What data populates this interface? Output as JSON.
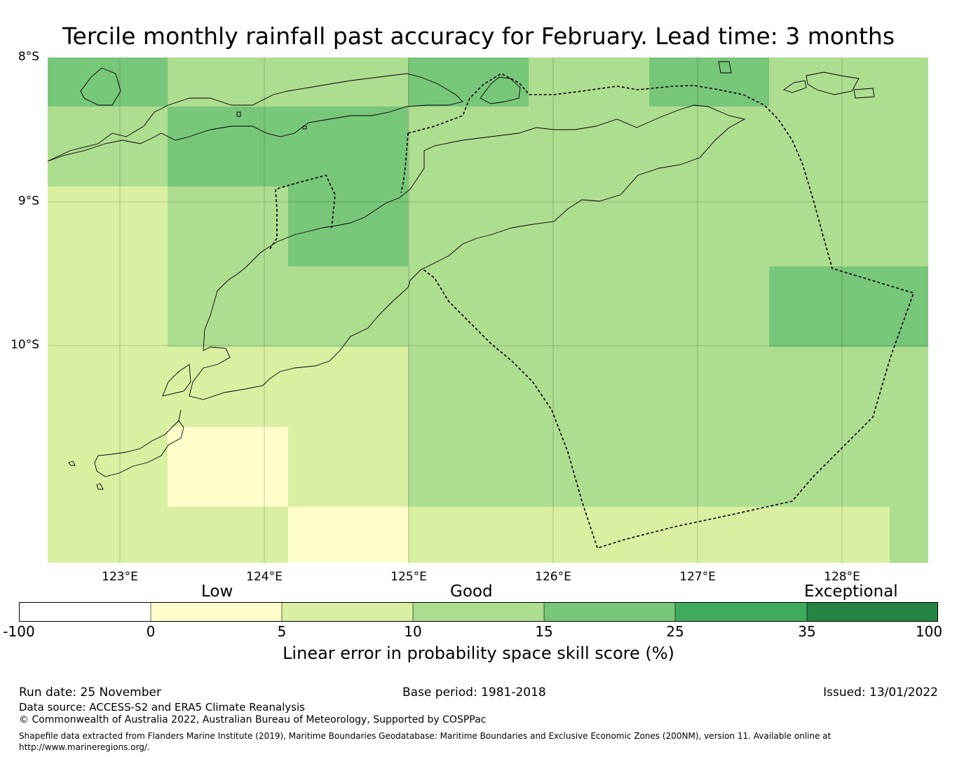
{
  "title": "Tercile monthly rainfall past accuracy for February. Lead time: 3 months",
  "colors": {
    "low": "#ffffcc",
    "c5_10": "#d9f0a3",
    "c10_15": "#addd8e",
    "c15_25": "#78c679",
    "c25_35": "#41ab5d",
    "c35_100": "#238443",
    "neg": "#ffffff"
  },
  "map": {
    "lat_labels": [
      "8°S",
      "9°S",
      "10°S"
    ],
    "lon_labels": [
      "123°E",
      "124°E",
      "125°E",
      "126°E",
      "127°E",
      "128°E"
    ]
  },
  "legend": {
    "categories": [
      "Low",
      "Good",
      "Exceptional"
    ],
    "ticks": [
      "-100",
      "0",
      "5",
      "10",
      "15",
      "25",
      "35",
      "100"
    ],
    "title": "Linear error in probability space skill score (%)"
  },
  "footer": {
    "run_date": "Run date: 25 November",
    "base_period": "Base period: 1981-2018",
    "issued": "Issued: 13/01/2022",
    "data_source": "Data source: ACCESS-S2 and ERA5 Climate Reanalysis",
    "copyright": "© Commonwealth of Australia 2022, Australian Bureau of Meteorology, Supported by COSPPac",
    "shapefile_line1": "Shapefile data extracted from Flanders Marine Institute (2019), Maritime Boundaries Geodatabase: Maritime Boundaries and Exclusive Economic Zones (200NM), version 11. Available online at",
    "shapefile_line2": "http://www.marineregions.org/."
  }
}
